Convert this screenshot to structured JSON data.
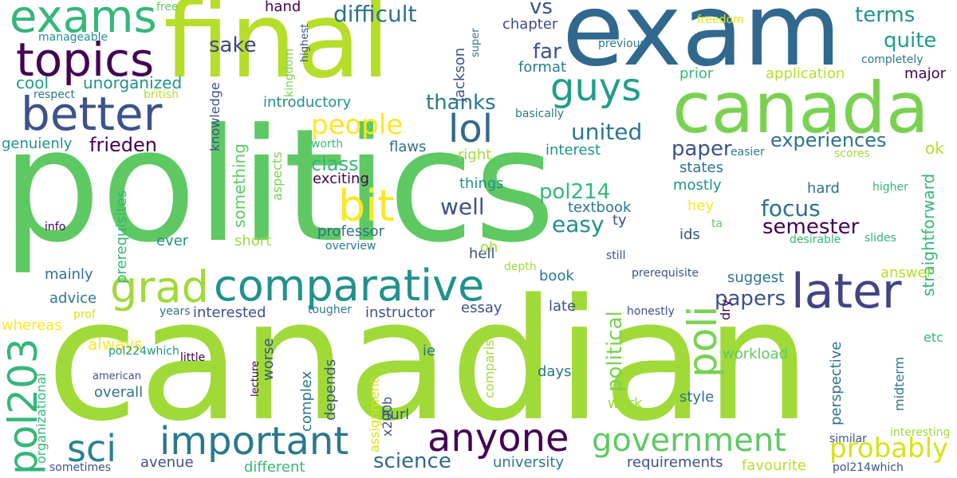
{
  "words": [
    {
      "text": "politics",
      "color": "#5ec962"
    },
    {
      "text": "canadian",
      "color": "#a0da39"
    },
    {
      "text": "exam",
      "color": "#31688e"
    },
    {
      "text": "final",
      "color": "#b5de2b"
    },
    {
      "text": "canada",
      "color": "#7ad151"
    },
    {
      "text": "topics",
      "color": "#440154"
    },
    {
      "text": "exams",
      "color": "#35b779"
    },
    {
      "text": "better",
      "color": "#3b528b"
    },
    {
      "text": "comparative",
      "color": "#21918c"
    },
    {
      "text": "later",
      "color": "#414487"
    },
    {
      "text": "guys",
      "color": "#1f9e89"
    },
    {
      "text": "important",
      "color": "#2a788e"
    },
    {
      "text": "government",
      "color": "#5ec962"
    },
    {
      "text": "anyone",
      "color": "#440154"
    },
    {
      "text": "pol203",
      "color": "#35b779"
    },
    {
      "text": "grad",
      "color": "#a0da39"
    },
    {
      "text": "poli",
      "color": "#7ad151"
    },
    {
      "text": "bit",
      "color": "#fde725"
    },
    {
      "text": "lol",
      "color": "#31688e"
    },
    {
      "text": "sci",
      "color": "#26828e"
    },
    {
      "text": "people",
      "color": "#fde725"
    },
    {
      "text": "probably",
      "color": "#d8e219"
    },
    {
      "text": "difficult",
      "color": "#2c728e"
    },
    {
      "text": "focus",
      "color": "#2c728e"
    },
    {
      "text": "science",
      "color": "#31688e"
    },
    {
      "text": "political",
      "color": "#7ad151"
    },
    {
      "text": "united",
      "color": "#2a788e"
    },
    {
      "text": "experiences",
      "color": "#2c728e"
    },
    {
      "text": "semester",
      "color": "#440154"
    },
    {
      "text": "papers",
      "color": "#3b528b"
    },
    {
      "text": "thanks",
      "color": "#2a788e"
    },
    {
      "text": "terms",
      "color": "#21918c"
    },
    {
      "text": "quite",
      "color": "#1f9e89"
    },
    {
      "text": "frieden",
      "color": "#440154"
    },
    {
      "text": "class",
      "color": "#35b779"
    },
    {
      "text": "paper",
      "color": "#3b528b"
    },
    {
      "text": "easy",
      "color": "#21918c"
    },
    {
      "text": "well",
      "color": "#3b528b"
    },
    {
      "text": "pol214",
      "color": "#35b779"
    },
    {
      "text": "far",
      "color": "#3b528b"
    },
    {
      "text": "sake",
      "color": "#414487"
    },
    {
      "text": "vs",
      "color": "#3b528b"
    },
    {
      "text": "hand",
      "color": "#440154"
    },
    {
      "text": "chapter",
      "color": "#3e4a89"
    },
    {
      "text": "format",
      "color": "#2a788e"
    },
    {
      "text": "unorganized",
      "color": "#21918c"
    },
    {
      "text": "cool",
      "color": "#1f9e89"
    },
    {
      "text": "introductory",
      "color": "#21918c"
    },
    {
      "text": "application",
      "color": "#b5de2b"
    },
    {
      "text": "prior",
      "color": "#35b779"
    },
    {
      "text": "major",
      "color": "#440154"
    },
    {
      "text": "genuienly",
      "color": "#21918c"
    },
    {
      "text": "something",
      "color": "#5ec962"
    },
    {
      "text": "exciting",
      "color": "#440154"
    },
    {
      "text": "flaws",
      "color": "#2c728e"
    },
    {
      "text": "interest",
      "color": "#21918c"
    },
    {
      "text": "right",
      "color": "#a0da39"
    },
    {
      "text": "states",
      "color": "#2c728e"
    },
    {
      "text": "mostly",
      "color": "#21918c"
    },
    {
      "text": "things",
      "color": "#21918c"
    },
    {
      "text": "hard",
      "color": "#2c728e"
    },
    {
      "text": "hey",
      "color": "#fde725"
    },
    {
      "text": "ok",
      "color": "#b5de2b"
    },
    {
      "text": "straightforward",
      "color": "#35b779"
    },
    {
      "text": "prerequisites",
      "color": "#35b779"
    },
    {
      "text": "aspects",
      "color": "#7ad151"
    },
    {
      "text": "knowledge",
      "color": "#3b528b"
    },
    {
      "text": "kingdom",
      "color": "#7ad151"
    },
    {
      "text": "jackson",
      "color": "#3b528b"
    },
    {
      "text": "ever",
      "color": "#21918c"
    },
    {
      "text": "short",
      "color": "#a0da39"
    },
    {
      "text": "professor",
      "color": "#2c728e"
    },
    {
      "text": "hell",
      "color": "#3b528b"
    },
    {
      "text": "textbook",
      "color": "#2a788e"
    },
    {
      "text": "ty",
      "color": "#3b528b"
    },
    {
      "text": "ids",
      "color": "#3b528b"
    },
    {
      "text": "oh",
      "color": "#a0da39"
    },
    {
      "text": "mainly",
      "color": "#2c728e"
    },
    {
      "text": "advice",
      "color": "#2a788e"
    },
    {
      "text": "interested",
      "color": "#3b528b"
    },
    {
      "text": "instructor",
      "color": "#3b528b"
    },
    {
      "text": "essay",
      "color": "#3b528b"
    },
    {
      "text": "book",
      "color": "#2a788e"
    },
    {
      "text": "late",
      "color": "#3b528b"
    },
    {
      "text": "suggest",
      "color": "#2c728e"
    },
    {
      "text": "dry",
      "color": "#440154"
    },
    {
      "text": "answer",
      "color": "#b5de2b"
    },
    {
      "text": "etc",
      "color": "#35b779"
    },
    {
      "text": "always",
      "color": "#fde725"
    },
    {
      "text": "overall",
      "color": "#2c728e"
    },
    {
      "text": "worse",
      "color": "#3b528b"
    },
    {
      "text": "complex",
      "color": "#2a788e"
    },
    {
      "text": "depends",
      "color": "#3b528b"
    },
    {
      "text": "x200b",
      "color": "#3b528b"
    },
    {
      "text": "ie",
      "color": "#2c728e"
    },
    {
      "text": "comparison",
      "color": "#a0da39"
    },
    {
      "text": "days",
      "color": "#2c728e"
    },
    {
      "text": "workload",
      "color": "#5ec962"
    },
    {
      "text": "perspective",
      "color": "#2c728e"
    },
    {
      "text": "midterm",
      "color": "#2c728e"
    },
    {
      "text": "style",
      "color": "#2c728e"
    },
    {
      "text": "work",
      "color": "#a0da39"
    },
    {
      "text": "hurl",
      "color": "#3b528b"
    },
    {
      "text": "assignment",
      "color": "#d8e219"
    },
    {
      "text": "avenue",
      "color": "#3b528b"
    },
    {
      "text": "university",
      "color": "#2a788e"
    },
    {
      "text": "requirements",
      "color": "#3b528b"
    },
    {
      "text": "favourite",
      "color": "#b5de2b"
    },
    {
      "text": "different",
      "color": "#35b779"
    },
    {
      "text": "organizational",
      "color": "#35b779"
    },
    {
      "text": "whereas",
      "color": "#fde725"
    },
    {
      "text": "free",
      "color": "#5ec962"
    },
    {
      "text": "manageable",
      "color": "#21918c"
    },
    {
      "text": "highest",
      "color": "#3b528b"
    },
    {
      "text": "super",
      "color": "#2a788e"
    },
    {
      "text": "freedom",
      "color": "#d8e219"
    },
    {
      "text": "previous",
      "color": "#2a788e"
    },
    {
      "text": "completely",
      "color": "#2a788e"
    },
    {
      "text": "respect",
      "color": "#2a788e"
    },
    {
      "text": "british",
      "color": "#b5de2b"
    },
    {
      "text": "basically",
      "color": "#2a788e"
    },
    {
      "text": "worth",
      "color": "#35b779"
    },
    {
      "text": "easier",
      "color": "#2a788e"
    },
    {
      "text": "scores",
      "color": "#a0da39"
    },
    {
      "text": "higher",
      "color": "#35b779"
    },
    {
      "text": "info",
      "color": "#440154"
    },
    {
      "text": "ta",
      "color": "#5ec962"
    },
    {
      "text": "overview",
      "color": "#2a788e"
    },
    {
      "text": "slides",
      "color": "#35b779"
    },
    {
      "text": "desirable",
      "color": "#35b779"
    },
    {
      "text": "depth",
      "color": "#a0da39"
    },
    {
      "text": "still",
      "color": "#3b528b"
    },
    {
      "text": "prerequisite",
      "color": "#3b528b"
    },
    {
      "text": "years",
      "color": "#2c728e"
    },
    {
      "text": "prof",
      "color": "#d8e219"
    },
    {
      "text": "tougher",
      "color": "#2a788e"
    },
    {
      "text": "honestly",
      "color": "#3b528b"
    },
    {
      "text": "pol224which",
      "color": "#21918c"
    },
    {
      "text": "little",
      "color": "#440154"
    },
    {
      "text": "american",
      "color": "#3b528b"
    },
    {
      "text": "lecture",
      "color": "#440154"
    },
    {
      "text": "interesting",
      "color": "#a0da39"
    },
    {
      "text": "similar",
      "color": "#3b528b"
    },
    {
      "text": "pol214which",
      "color": "#3b528b"
    },
    {
      "text": "sometimes",
      "color": "#3b528b"
    }
  ]
}
